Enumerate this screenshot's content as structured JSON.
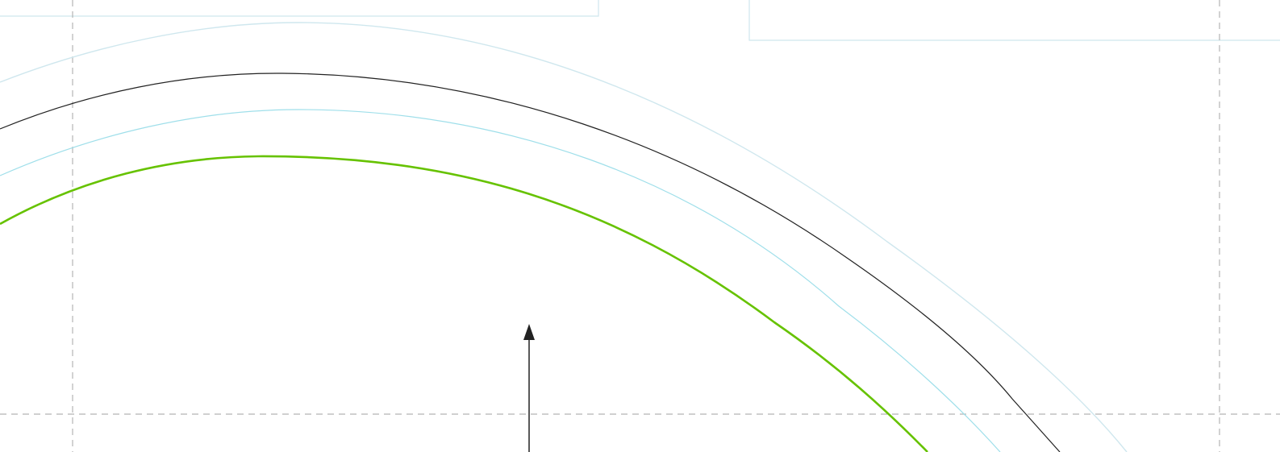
{
  "diagram": {
    "background": "#ffffff",
    "colors": {
      "guide": "#b3b3b3",
      "faint_cyan": "#cfe7ee",
      "cyan": "#9fdfea",
      "black": "#222222",
      "green": "#66c200"
    }
  }
}
